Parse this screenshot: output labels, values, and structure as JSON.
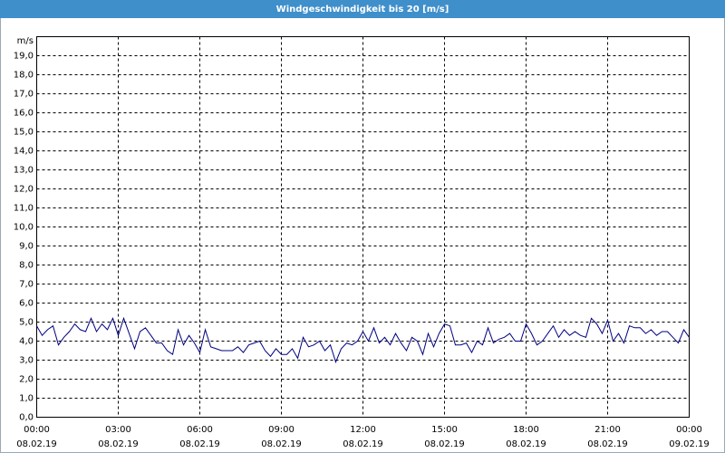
{
  "chart_data": {
    "type": "line",
    "title": "Windgeschwindigkeit bis 20 [m/s]",
    "y_label": "m/s",
    "x": [
      0,
      0.2,
      0.4,
      0.6,
      0.8,
      1,
      1.2,
      1.4,
      1.6,
      1.8,
      2,
      2.2,
      2.4,
      2.6,
      2.8,
      3,
      3.2,
      3.4,
      3.6,
      3.8,
      4,
      4.2,
      4.4,
      4.6,
      4.8,
      5,
      5.2,
      5.4,
      5.6,
      5.8,
      6,
      6.2,
      6.4,
      6.6,
      6.8,
      7,
      7.2,
      7.4,
      7.6,
      7.8,
      8,
      8.2,
      8.4,
      8.6,
      8.8,
      9,
      9.2,
      9.4,
      9.6,
      9.8,
      10,
      10.2,
      10.4,
      10.6,
      10.8,
      11,
      11.2,
      11.4,
      11.6,
      11.8,
      12,
      12.2,
      12.4,
      12.6,
      12.8,
      13,
      13.2,
      13.4,
      13.6,
      13.8,
      14,
      14.2,
      14.4,
      14.6,
      14.8,
      15,
      15.2,
      15.4,
      15.6,
      15.8,
      16,
      16.2,
      16.4,
      16.6,
      16.8,
      17,
      17.2,
      17.4,
      17.6,
      17.8,
      18,
      18.2,
      18.4,
      18.6,
      18.8,
      19,
      19.2,
      19.4,
      19.6,
      19.8,
      20,
      20.2,
      20.4,
      20.6,
      20.8,
      21,
      21.2,
      21.4,
      21.6,
      21.8,
      22,
      22.2,
      22.4,
      22.6,
      22.8,
      23,
      23.2,
      23.4,
      23.6,
      23.8,
      24
    ],
    "series": [
      {
        "name": "Windgeschwindigkeit",
        "color": "#000080",
        "values": [
          4.8,
          4.3,
          4.6,
          4.8,
          3.8,
          4.2,
          4.5,
          4.9,
          4.6,
          4.5,
          5.2,
          4.5,
          4.9,
          4.6,
          5.2,
          4.3,
          5.2,
          4.4,
          3.6,
          4.5,
          4.7,
          4.3,
          3.9,
          3.9,
          3.5,
          3.3,
          4.6,
          3.8,
          4.3,
          3.9,
          3.4,
          4.6,
          3.7,
          3.6,
          3.5,
          3.5,
          3.5,
          3.7,
          3.4,
          3.8,
          3.9,
          4.0,
          3.5,
          3.2,
          3.6,
          3.3,
          3.3,
          3.6,
          3.1,
          4.2,
          3.7,
          3.8,
          4.0,
          3.5,
          3.8,
          2.9,
          3.6,
          3.9,
          3.8,
          4.0,
          4.5,
          4.0,
          4.7,
          3.9,
          4.2,
          3.8,
          4.4,
          3.9,
          3.5,
          4.2,
          4.0,
          3.3,
          4.4,
          3.7,
          4.4,
          4.9,
          4.8,
          3.8,
          3.8,
          3.9,
          3.4,
          4.0,
          3.8,
          4.7,
          3.9,
          4.1,
          4.2,
          4.4,
          4.0,
          4.0,
          4.9,
          4.4,
          3.8,
          4.0,
          4.4,
          4.8,
          4.2,
          4.6,
          4.3,
          4.5,
          4.3,
          4.2,
          5.2,
          4.9,
          4.4,
          5.1,
          4.0,
          4.4,
          3.9,
          4.8,
          4.7,
          4.7,
          4.4,
          4.6,
          4.3,
          4.5,
          4.5,
          4.2,
          3.9,
          4.6,
          4.2
        ]
      }
    ],
    "xlim": [
      0,
      24
    ],
    "xticks": [
      {
        "value": 0,
        "label": "00:00"
      },
      {
        "value": 3,
        "label": "03:00"
      },
      {
        "value": 6,
        "label": "06:00"
      },
      {
        "value": 9,
        "label": "09:00"
      },
      {
        "value": 12,
        "label": "12:00"
      },
      {
        "value": 15,
        "label": "15:00"
      },
      {
        "value": 18,
        "label": "18:00"
      },
      {
        "value": 21,
        "label": "21:00"
      },
      {
        "value": 24,
        "label": "00:00"
      }
    ],
    "xtick_dates": [
      "08.02.19",
      "08.02.19",
      "08.02.19",
      "08.02.19",
      "08.02.19",
      "08.02.19",
      "08.02.19",
      "08.02.19",
      "09.02.19"
    ],
    "ylim": [
      0,
      20
    ],
    "yticks": [
      {
        "value": 0,
        "label": "0,0"
      },
      {
        "value": 1,
        "label": "1,0"
      },
      {
        "value": 2,
        "label": "2,0"
      },
      {
        "value": 3,
        "label": "3,0"
      },
      {
        "value": 4,
        "label": "4,0"
      },
      {
        "value": 5,
        "label": "5,0"
      },
      {
        "value": 6,
        "label": "6,0"
      },
      {
        "value": 7,
        "label": "7,0"
      },
      {
        "value": 8,
        "label": "8,0"
      },
      {
        "value": 9,
        "label": "9,0"
      },
      {
        "value": 10,
        "label": "10,0"
      },
      {
        "value": 11,
        "label": "11,0"
      },
      {
        "value": 12,
        "label": "12,0"
      },
      {
        "value": 13,
        "label": "13,0"
      },
      {
        "value": 14,
        "label": "14,0"
      },
      {
        "value": 15,
        "label": "15,0"
      },
      {
        "value": 16,
        "label": "16,0"
      },
      {
        "value": 17,
        "label": "17,0"
      },
      {
        "value": 18,
        "label": "18,0"
      },
      {
        "value": 19,
        "label": "19,0"
      }
    ],
    "grid": true
  }
}
